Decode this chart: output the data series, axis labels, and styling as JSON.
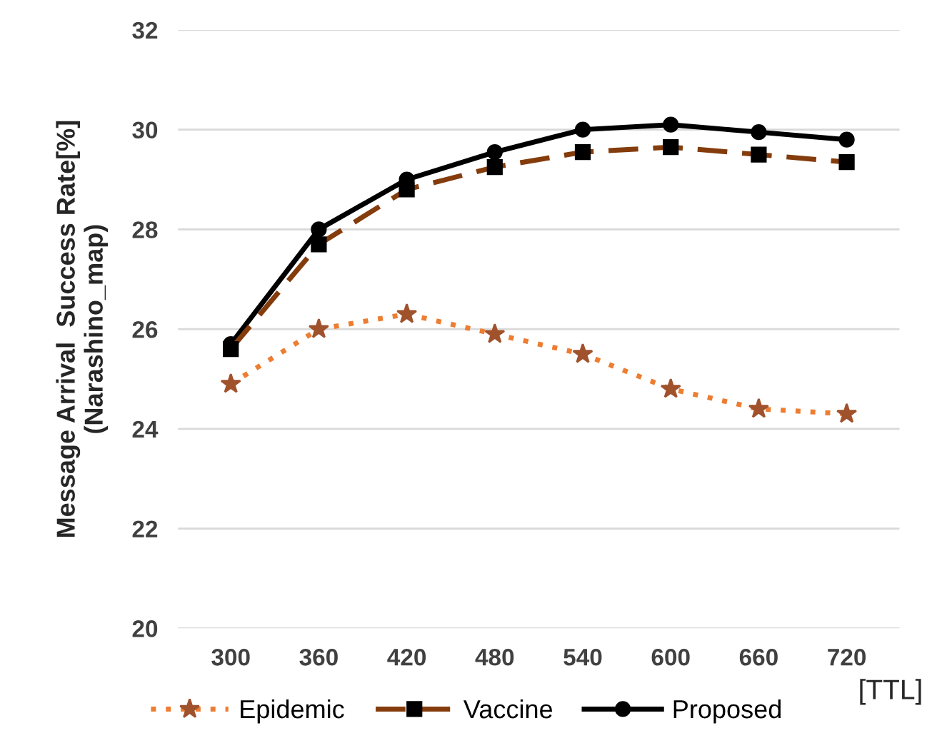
{
  "chart_data": {
    "type": "line",
    "ylabel": "Message Arrival  Success Rate[%]\n(Narashino_map)",
    "xlabel": "[TTL]",
    "categories": [
      "300",
      "360",
      "420",
      "480",
      "540",
      "600",
      "660",
      "720"
    ],
    "series": [
      {
        "name": "Epidemic",
        "color": "#ed7d31",
        "marker": "star",
        "line_style": "dotted",
        "values": [
          24.9,
          26.0,
          26.3,
          25.9,
          25.5,
          24.8,
          24.4,
          24.3
        ]
      },
      {
        "name": "Vaccine",
        "color": "#843c0c",
        "marker": "square",
        "line_style": "dashed",
        "values": [
          25.6,
          27.7,
          28.8,
          29.25,
          29.55,
          29.65,
          29.5,
          29.35
        ]
      },
      {
        "name": "Proposed",
        "color": "#000000",
        "marker": "circle",
        "line_style": "solid",
        "values": [
          25.7,
          28.0,
          29.0,
          29.55,
          30.0,
          30.1,
          29.95,
          29.8
        ]
      }
    ],
    "ylim": [
      20,
      32
    ],
    "yticks": [
      20,
      22,
      24,
      26,
      28,
      30,
      32
    ],
    "grid": "y",
    "legend": "bottom"
  }
}
